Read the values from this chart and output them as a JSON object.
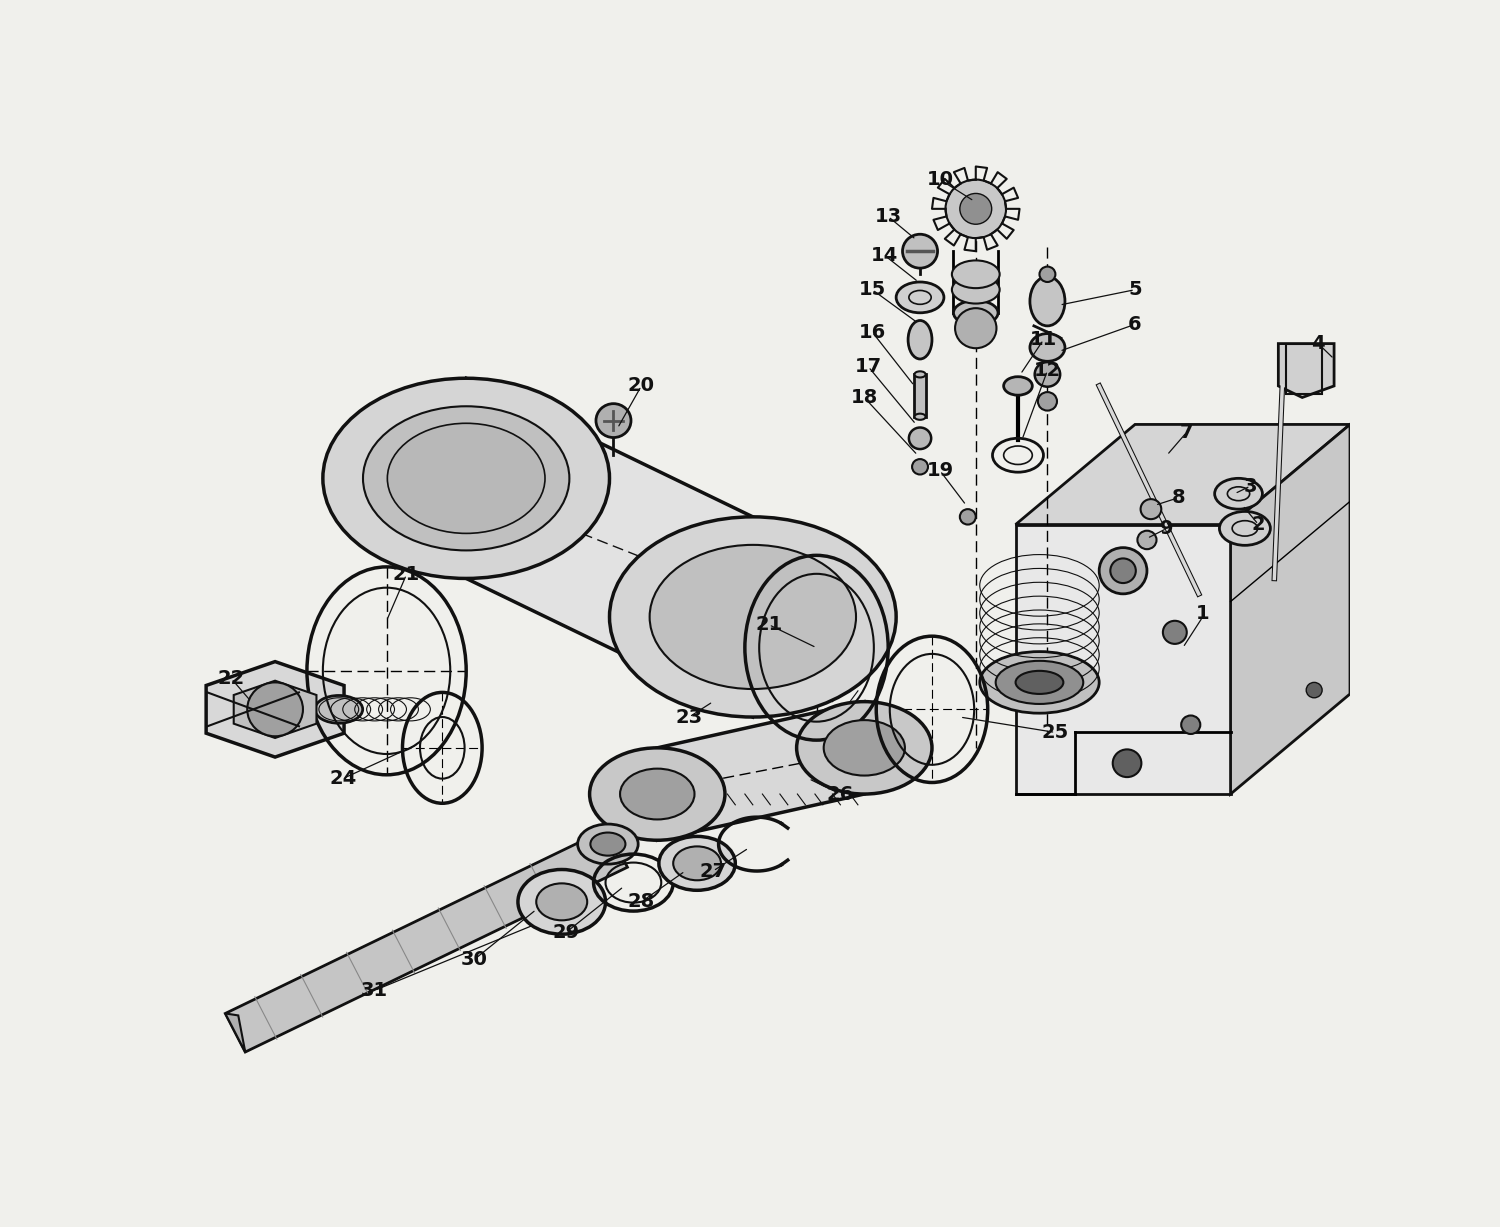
{
  "background": "#f0f0ec",
  "lc": "#111111",
  "figsize": [
    15.0,
    12.27
  ],
  "dpi": 100,
  "xlim": [
    20,
    1480
  ],
  "ylim": [
    1227,
    0
  ],
  "labels": [
    [
      "1",
      1295,
      605
    ],
    [
      "2",
      1365,
      490
    ],
    [
      "3",
      1355,
      440
    ],
    [
      "4",
      1440,
      255
    ],
    [
      "5",
      1210,
      185
    ],
    [
      "6",
      1210,
      230
    ],
    [
      "7",
      1275,
      370
    ],
    [
      "8",
      1265,
      455
    ],
    [
      "9",
      1250,
      495
    ],
    [
      "10",
      965,
      42
    ],
    [
      "11",
      1095,
      250
    ],
    [
      "12",
      1100,
      290
    ],
    [
      "13",
      900,
      90
    ],
    [
      "14",
      895,
      140
    ],
    [
      "15",
      880,
      185
    ],
    [
      "16",
      880,
      240
    ],
    [
      "17",
      875,
      285
    ],
    [
      "18",
      870,
      325
    ],
    [
      "19",
      965,
      420
    ],
    [
      "20",
      590,
      310
    ],
    [
      "21",
      295,
      555
    ],
    [
      "21",
      750,
      620
    ],
    [
      "22",
      75,
      690
    ],
    [
      "23",
      650,
      740
    ],
    [
      "24",
      215,
      820
    ],
    [
      "25",
      1110,
      760
    ],
    [
      "26",
      840,
      840
    ],
    [
      "27",
      680,
      940
    ],
    [
      "28",
      590,
      980
    ],
    [
      "29",
      495,
      1020
    ],
    [
      "30",
      380,
      1055
    ],
    [
      "31",
      255,
      1095
    ]
  ]
}
